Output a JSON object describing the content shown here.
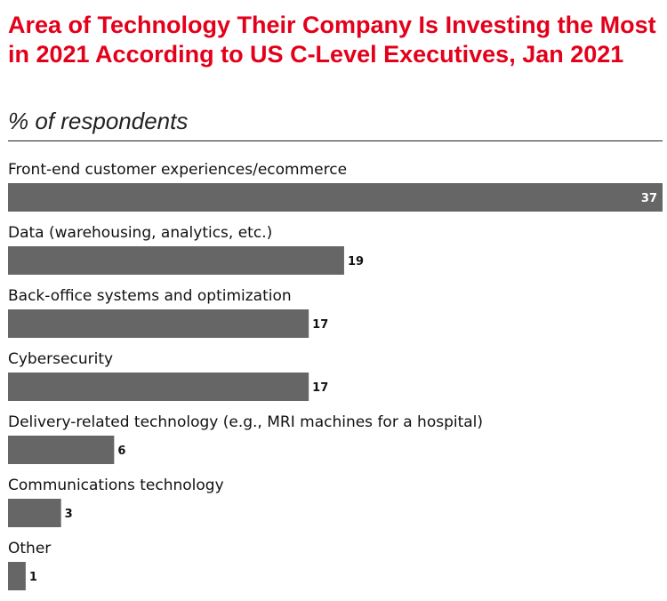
{
  "title": "Area of Technology Their Company Is Investing the Most in 2021 According to US C-Level Executives, Jan 2021",
  "subtitle": "% of respondents",
  "colors": {
    "title": "#e3001b",
    "bar": "#666666",
    "value_inside": "#ffffff",
    "value_outside": "#111111"
  },
  "chart_data": {
    "type": "bar",
    "orientation": "horizontal",
    "categories": [
      "Front-end customer experiences/ecommerce",
      "Data (warehousing, analytics, etc.)",
      "Back-office systems and optimization",
      "Cybersecurity",
      "Delivery-related technology (e.g., MRI machines for a hospital)",
      "Communications technology",
      "Other"
    ],
    "values": [
      37,
      19,
      17,
      17,
      6,
      3,
      1
    ],
    "xlim": [
      0,
      37
    ],
    "grid": false,
    "legend": "none"
  }
}
